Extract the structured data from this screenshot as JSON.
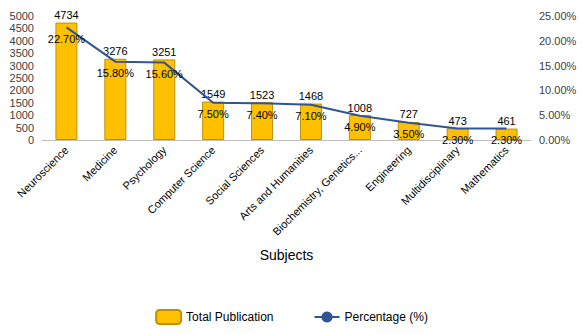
{
  "chart_data": {
    "type": "bar",
    "x_label": "Subjects",
    "categories": [
      "Neuroscience",
      "Medicine",
      "Psychology",
      "Computer Science",
      "Social Sciences",
      "Arts and Humanities",
      "Biochemistry, Genetics...",
      "Engineering",
      "Multidisciplinary",
      "Mathematics"
    ],
    "series": [
      {
        "name": "Total Publication",
        "type": "bar",
        "color": "#ffc000",
        "values": [
          4734,
          3276,
          3251,
          1549,
          1523,
          1468,
          1008,
          727,
          473,
          461
        ]
      },
      {
        "name": "Percentage (%)",
        "type": "line",
        "color": "#2f5597",
        "axis": "y2",
        "values": [
          22.7,
          15.8,
          15.6,
          7.5,
          7.4,
          7.1,
          4.9,
          3.5,
          2.3,
          2.3
        ],
        "value_labels": [
          "22.70%",
          "15.80%",
          "15.60%",
          "7.50%",
          "7.40%",
          "7.10%",
          "4.90%",
          "3.50%",
          "2.30%",
          "2.30%"
        ]
      }
    ],
    "ylim": [
      0,
      5000
    ],
    "yticks": [
      0,
      500,
      1000,
      1500,
      2000,
      2500,
      3000,
      3500,
      4000,
      4500,
      5000
    ],
    "y2lim": [
      0,
      25
    ],
    "y2ticks": [
      {
        "value": 0,
        "label": "0.00%"
      },
      {
        "value": 5,
        "label": "5.00%"
      },
      {
        "value": 10,
        "label": "10.00%"
      },
      {
        "value": 15,
        "label": "15.00%"
      },
      {
        "value": 20,
        "label": "20.00%"
      },
      {
        "value": 25,
        "label": "25.00%"
      }
    ],
    "grid": false,
    "legend": "bottom",
    "data_labels": true
  }
}
